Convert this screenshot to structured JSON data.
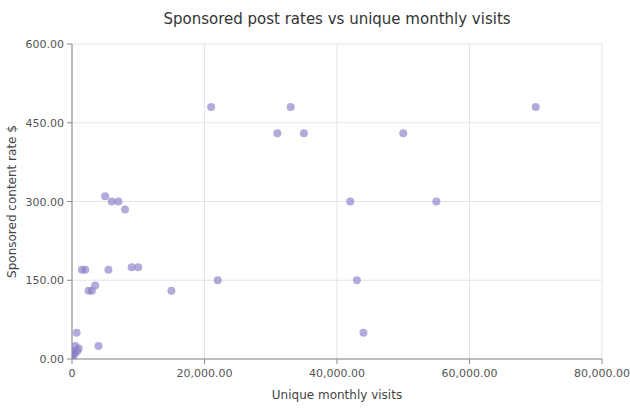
{
  "chart_data": {
    "type": "scatter",
    "title": "Sponsored post rates vs unique monthly visits",
    "xlabel": "Unique monthly visits",
    "ylabel": "Sponsored content rate $",
    "color": "#8b7ec8",
    "grid": true,
    "xlim": [
      0,
      80000
    ],
    "ylim": [
      0,
      600
    ],
    "xticks": [
      0,
      {
        "value": 20000,
        "label": "20,000.00"
      },
      {
        "value": 40000,
        "label": "40,000.00"
      },
      {
        "value": 60000,
        "label": "60,000.00"
      },
      {
        "value": 80000,
        "label": "80,000.00"
      }
    ],
    "yticks": [
      {
        "value": 0,
        "label": "0.00"
      },
      {
        "value": 150,
        "label": "150.00"
      },
      {
        "value": 300,
        "label": "300.00"
      },
      {
        "value": 450,
        "label": "450.00"
      },
      {
        "value": 600,
        "label": "600.00"
      }
    ],
    "x": [
      0,
      100,
      200,
      300,
      400,
      500,
      700,
      800,
      1000,
      1500,
      2000,
      2500,
      3000,
      3500,
      4000,
      5000,
      5500,
      6000,
      7000,
      8000,
      9000,
      10000,
      15000,
      21000,
      22000,
      31000,
      33000,
      35000,
      42000,
      43000,
      44000,
      50000,
      55000,
      70000
    ],
    "values": [
      0,
      5,
      10,
      15,
      10,
      25,
      50,
      15,
      20,
      170,
      170,
      130,
      130,
      140,
      25,
      310,
      170,
      300,
      300,
      285,
      175,
      175,
      130,
      480,
      150,
      430,
      480,
      430,
      300,
      150,
      50,
      430,
      300,
      480
    ]
  }
}
